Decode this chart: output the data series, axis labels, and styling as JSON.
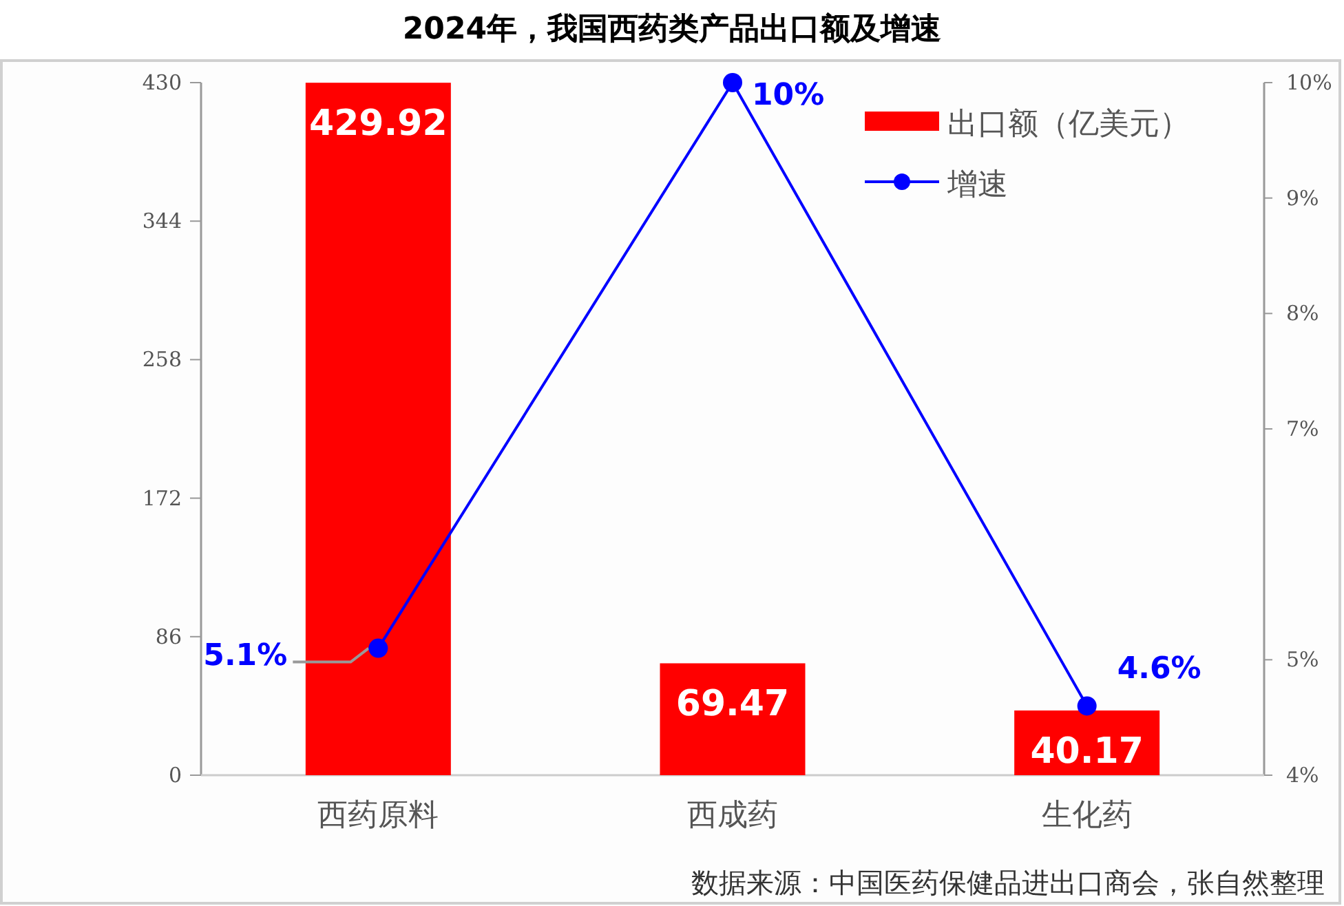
{
  "chart_data": {
    "type": "bar",
    "title": "2024年，我国西药类产品出口额及增速",
    "categories": [
      "西药原料",
      "西成药",
      "生化药"
    ],
    "series": [
      {
        "name": "出口额（亿美元）",
        "color": "#ff0000",
        "values": [
          429.92,
          69.47,
          40.17
        ]
      },
      {
        "name": "增速",
        "type": "line",
        "axis": "y2",
        "color": "#0000ff",
        "values": [
          5.1,
          10,
          4.6
        ],
        "value_labels": [
          "5.1%",
          "10%",
          "4.6%"
        ]
      }
    ],
    "ylim": [
      0,
      430
    ],
    "yticks": [
      0,
      86,
      172,
      258,
      344,
      430
    ],
    "y2lim": [
      4,
      10
    ],
    "y2ticks": [
      {
        "value": 4,
        "label": "4%"
      },
      {
        "value": 5,
        "label": "5%"
      },
      {
        "value": 7,
        "label": "7%"
      },
      {
        "value": 8,
        "label": "8%"
      },
      {
        "value": 9,
        "label": "9%"
      },
      {
        "value": 10,
        "label": "10%"
      }
    ],
    "data_labels": true,
    "marker": "circle",
    "legend": "top right",
    "grid": false,
    "annotations": [
      "数据来源：中国医药保健品进出口商会，张自然整理"
    ]
  }
}
